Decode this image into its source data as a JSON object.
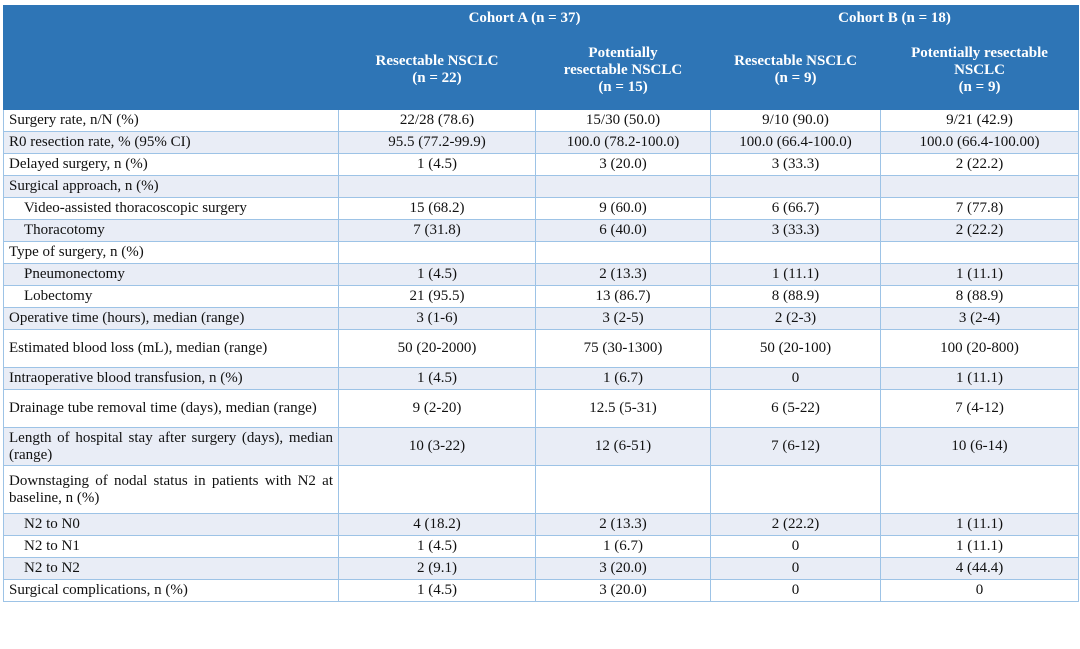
{
  "header": {
    "cohort_a": "Cohort A (n = 37)",
    "cohort_b": "Cohort B (n = 18)",
    "columns": [
      "Resectable NSCLC\n(n = 22)",
      "Potentially resectable NSCLC (n = 15)",
      "Resectable NSCLC (n = 9)",
      "Potentially resectable NSCLC (n = 9)"
    ],
    "col_lines": [
      [
        "Resectable NSCLC",
        "(n = 22)"
      ],
      [
        "Potentially",
        "resectable NSCLC",
        "(n = 15)"
      ],
      [
        "Resectable NSCLC",
        "(n = 9)"
      ],
      [
        "Potentially resectable",
        "NSCLC",
        "(n = 9)"
      ]
    ]
  },
  "colors": {
    "header_bg": "#2e75b6",
    "alt_row_bg": "#e9edf6",
    "border": "#9dc3e6"
  },
  "rows": [
    {
      "label": "Surgery rate, n/N (%)",
      "values": [
        "22/28 (78.6)",
        "15/30 (50.0)",
        "9/10 (90.0)",
        "9/21 (42.9)"
      ]
    },
    {
      "label": "R0 resection rate, % (95% CI)",
      "values": [
        "95.5 (77.2-99.9)",
        "100.0 (78.2-100.0)",
        "100.0 (66.4-100.0)",
        "100.0 (66.4-100.00)"
      ]
    },
    {
      "label": "Delayed surgery, n (%)",
      "values": [
        "1 (4.5)",
        "3 (20.0)",
        "3 (33.3)",
        "2 (22.2)"
      ]
    },
    {
      "label": "Surgical approach, n (%)",
      "values": [
        "",
        "",
        "",
        ""
      ]
    },
    {
      "label": "Video-assisted thoracoscopic surgery",
      "sub": true,
      "values": [
        "15 (68.2)",
        "9 (60.0)",
        "6 (66.7)",
        "7 (77.8)"
      ]
    },
    {
      "label": "Thoracotomy",
      "sub": true,
      "values": [
        "7 (31.8)",
        "6 (40.0)",
        "3 (33.3)",
        "2 (22.2)"
      ]
    },
    {
      "label": "Type of surgery, n (%)",
      "values": [
        "",
        "",
        "",
        ""
      ]
    },
    {
      "label": "Pneumonectomy",
      "sub": true,
      "values": [
        "1 (4.5)",
        "2 (13.3)",
        "1 (11.1)",
        "1 (11.1)"
      ]
    },
    {
      "label": "Lobectomy",
      "sub": true,
      "values": [
        "21 (95.5)",
        "13 (86.7)",
        "8 (88.9)",
        "8 (88.9)"
      ]
    },
    {
      "label": "Operative time (hours), median (range)",
      "values": [
        "3 (1-6)",
        "3 (2-5)",
        "2 (2-3)",
        "3 (2-4)"
      ]
    },
    {
      "label": "Estimated blood loss (mL), median (range)",
      "tall": 2,
      "values": [
        "50 (20-2000)",
        "75 (30-1300)",
        "50 (20-100)",
        "100 (20-800)"
      ]
    },
    {
      "label": "Intraoperative blood transfusion, n (%)",
      "values": [
        "1 (4.5)",
        "1 (6.7)",
        "0",
        "1 (11.1)"
      ]
    },
    {
      "label": "Drainage tube removal time (days), median (range)",
      "tall": 2,
      "values": [
        "9 (2-20)",
        "12.5 (5-31)",
        "6 (5-22)",
        "7 (4-12)"
      ]
    },
    {
      "label": "Length of hospital stay after surgery (days), median (range)",
      "tall": 2,
      "values": [
        "10 (3-22)",
        "12 (6-51)",
        "7 (6-12)",
        "10 (6-14)"
      ]
    },
    {
      "label": "Downstaging of nodal status in patients with N2 at baseline, n (%)",
      "tall": 3,
      "values": [
        "",
        "",
        "",
        ""
      ]
    },
    {
      "label": "N2 to N0",
      "sub": true,
      "values": [
        "4 (18.2)",
        "2 (13.3)",
        "2 (22.2)",
        "1 (11.1)"
      ]
    },
    {
      "label": "N2 to N1",
      "sub": true,
      "values": [
        "1 (4.5)",
        "1 (6.7)",
        "0",
        "1 (11.1)"
      ]
    },
    {
      "label": "N2 to N2",
      "sub": true,
      "values": [
        "2 (9.1)",
        "3 (20.0)",
        "0",
        "4 (44.4)"
      ]
    },
    {
      "label": "Surgical complications, n (%)",
      "values": [
        "1 (4.5)",
        "3 (20.0)",
        "0",
        "0"
      ]
    }
  ]
}
